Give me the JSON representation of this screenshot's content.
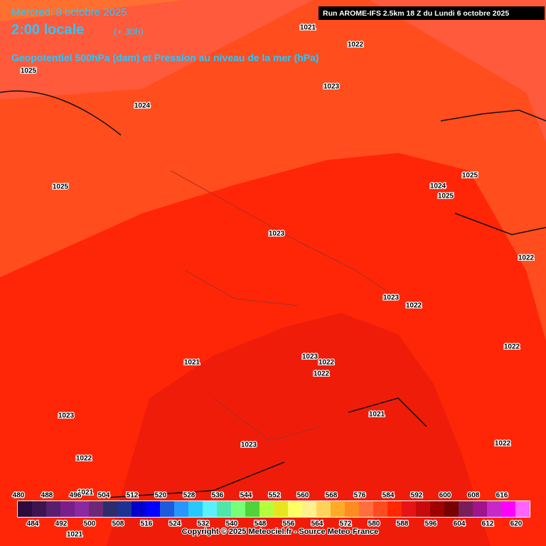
{
  "header": {
    "date": "Mercredi 8 octobre 2025",
    "time": "2:00 locale",
    "lead": "(+ 30h)",
    "subtitle": "Geopotentiel 500hPa (dam) et Pression au niveau de la mer (hPa)",
    "run": "Run AROME-IFS 2.5km 18 Z du Lundi 6 octobre 2025"
  },
  "isobars": [
    "1021",
    "1022",
    "1025",
    "1023",
    "1024",
    "1025",
    "1025",
    "1024",
    "1025",
    "1023",
    "1022",
    "1023",
    "1022",
    "1022",
    "1023",
    "1022",
    "1022",
    "1021",
    "1023",
    "1021",
    "1023",
    "1022",
    "1022",
    "1021",
    "1021"
  ],
  "legend": {
    "values": [
      480,
      484,
      488,
      492,
      496,
      500,
      504,
      508,
      512,
      516,
      520,
      524,
      528,
      532,
      536,
      540,
      544,
      548,
      552,
      556,
      560,
      564,
      568,
      572,
      576,
      580,
      584,
      588,
      592,
      596,
      600,
      604,
      608,
      612,
      616,
      620
    ],
    "colors": [
      "#2d0a3c",
      "#3d1450",
      "#5a1e6e",
      "#7a1e8c",
      "#8c28a0",
      "#6e2878",
      "#2d2d6e",
      "#1e3296",
      "#0000c8",
      "#0000ff",
      "#1e5adc",
      "#2896ff",
      "#28c8ff",
      "#5af0ff",
      "#50e6aa",
      "#78ff78",
      "#50d23c",
      "#b4ff3c",
      "#e6e61e",
      "#ffff64",
      "#fff08c",
      "#ffd25a",
      "#ffaa28",
      "#ff8c1e",
      "#ff6e3c",
      "#ff4b1e",
      "#ff2800",
      "#e61414",
      "#c80a0a",
      "#a00000",
      "#780000",
      "#7a1e5a",
      "#a0148c",
      "#c828c8",
      "#ff00ff",
      "#ff64ff"
    ]
  },
  "footer": {
    "copyright": "Copyright © 2025 Meteociel.fr - Source Meteo-France"
  }
}
